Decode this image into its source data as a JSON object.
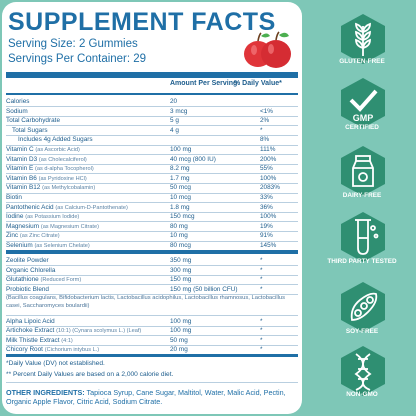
{
  "panel": {
    "title": "SUPPLEMENT FACTS",
    "serving_size": "Serving Size: 2 Gummies",
    "servings_per_container": "Servings Per Container: 29"
  },
  "table": {
    "col_amount": "Amount Per Serving",
    "col_dv": "% Daily Value*",
    "rows": [
      {
        "name": "Calories",
        "sub": "",
        "amount": "20",
        "dv": ""
      },
      {
        "name": "Sodium",
        "sub": "",
        "amount": "3 mcg",
        "dv": "<1%"
      },
      {
        "name": "Total Carbohydrate",
        "sub": "",
        "amount": "5 g",
        "dv": "2%"
      },
      {
        "name": "Total Sugars",
        "sub": "",
        "amount": "4 g",
        "dv": "*"
      },
      {
        "name": "Includes 4g Added Sugars",
        "sub": "",
        "amount": "",
        "dv": "8%"
      },
      {
        "name": "Vitamin C",
        "sub": "(as Ascorbic Acid)",
        "amount": "100 mg",
        "dv": "111%"
      },
      {
        "name": "Vitamin D3",
        "sub": "(as Cholecalciferol)",
        "amount": "40 mcg (800 IU)",
        "dv": "200%"
      },
      {
        "name": "Vitamin E",
        "sub": "(as d-alpha Tocopherol)",
        "amount": "8.2 mg",
        "dv": "55%"
      },
      {
        "name": "Vitamin B6",
        "sub": "(as Pyridoxine HCl)",
        "amount": "1.7 mg",
        "dv": "100%"
      },
      {
        "name": "Vitamin B12",
        "sub": "(as Methylcobalamin)",
        "amount": "50 mcg",
        "dv": "2083%"
      },
      {
        "name": "Biotin",
        "sub": "",
        "amount": "10 mcg",
        "dv": "33%"
      },
      {
        "name": "Pantothenic Acid",
        "sub": "(as Calcium-D-Pantothenate)",
        "amount": "1.8 mg",
        "dv": "36%"
      },
      {
        "name": "Iodine",
        "sub": "(as Potassium Iodide)",
        "amount": "150 mcg",
        "dv": "100%"
      },
      {
        "name": "Magnesium",
        "sub": "(as Magnesium Citrate)",
        "amount": "80 mg",
        "dv": "19%"
      },
      {
        "name": "Zinc",
        "sub": "(as Zinc Citrate)",
        "amount": "10 mg",
        "dv": "91%"
      },
      {
        "name": "Selenium",
        "sub": "(as Selenium Chelate)",
        "amount": "80 mcg",
        "dv": "145%"
      }
    ],
    "rows2": [
      {
        "name": "Zeolite Powder",
        "sub": "",
        "amount": "350 mg",
        "dv": "*"
      },
      {
        "name": "Organic Chlorella",
        "sub": "",
        "amount": "300 mg",
        "dv": "*"
      },
      {
        "name": "Glutathione",
        "sub": "(Reduced Form)",
        "amount": "150 mg",
        "dv": "*"
      },
      {
        "name": "Probiotic Blend",
        "sub": "",
        "amount": "150 mg (50 billion CFU)",
        "dv": "*"
      }
    ],
    "probiotic_detail": "(Bacillus coagulans, Bifidobacterium lactis, Lactobacillus acidophilus, Lactobacillus rhamnosus, Lactobacillus casei, Saccharomyces boulardii)",
    "rows3": [
      {
        "name": "Alpha Lipoic Acid",
        "sub": "",
        "amount": "100 mg",
        "dv": "*"
      },
      {
        "name": "Artichoke Extract",
        "sub": "(10:1) (Cynara scolymus L.) (Leaf)",
        "amount": "100 mg",
        "dv": "*"
      },
      {
        "name": "Milk Thistle Extract",
        "sub": "(4:1)",
        "amount": "50 mg",
        "dv": "*"
      },
      {
        "name": "Chicory Root",
        "sub": "(Cichorium intybus L.)",
        "amount": "20 mg",
        "dv": "*"
      }
    ],
    "note1": "*Daily Value (DV) not established.",
    "note2": "** Percent Daily Values are based on a 2,000 calorie diet."
  },
  "other_ingredients": {
    "label": "OTHER INGREDIENTS:",
    "text": "Tapioca Syrup, Cane Sugar, Maltitol, Water, Malic Acid, Pectin, Organic Apple Flavor, Citric Acid, Sodium Citrate."
  },
  "badges": [
    {
      "label": "GLUTEN-FREE",
      "icon": "wheat-icon"
    },
    {
      "label": "CERTIFIED",
      "icon": "gmp-check-icon",
      "inner": "GMP"
    },
    {
      "label": "DAIRY-FREE",
      "icon": "milk-carton-icon"
    },
    {
      "label": "THIRD PARTY TESTED",
      "icon": "test-tube-icon"
    },
    {
      "label": "SOY-FREE",
      "icon": "soybean-icon"
    },
    {
      "label": "NON-GMO",
      "icon": "dna-icon"
    }
  ],
  "colors": {
    "background": "#7ec7b7",
    "badge": "#2f8f72",
    "text": "#1f6fa6",
    "apple": "#e0353a"
  }
}
